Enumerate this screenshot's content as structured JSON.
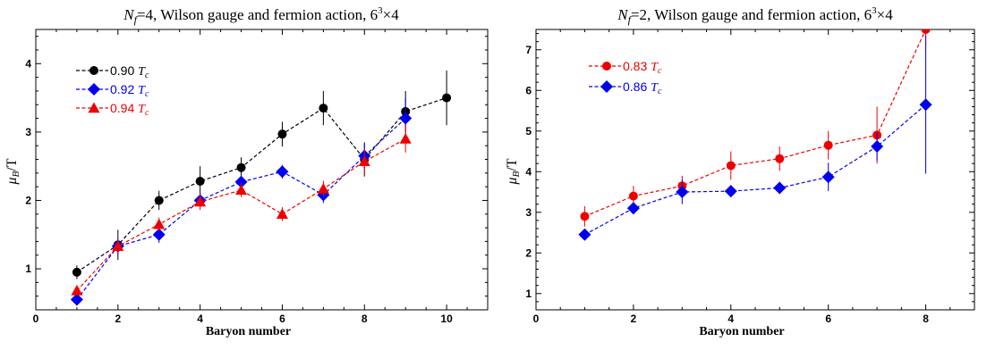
{
  "chart_data": [
    {
      "type": "line",
      "title": "N_f=4, Wilson gauge and fermion action, 6^3×4",
      "title_parts": {
        "nf": "N",
        "nf_sub": "f",
        "nf_value": "=4, Wilson gauge and fermion action, 6",
        "sup": "3",
        "tail": "×4"
      },
      "xlabel": "Baryon number",
      "ylabel": {
        "mu": "μ",
        "sub": "B",
        "rest": "/T"
      },
      "xlim": [
        0,
        11
      ],
      "ylim": [
        0.4,
        4.5
      ],
      "xticks": [
        0,
        2,
        4,
        6,
        8,
        10
      ],
      "yticks": [
        1,
        2,
        3,
        4
      ],
      "legend_position": "top-left",
      "grid": false,
      "series": [
        {
          "name": "0.90 T_c",
          "label_value": "0.90 ",
          "label_T": "T",
          "label_sub": "c",
          "color": "#000000",
          "marker": "circle",
          "x": [
            1,
            2,
            3,
            4,
            5,
            6,
            7,
            8,
            9,
            10
          ],
          "y": [
            0.95,
            1.35,
            2.0,
            2.28,
            2.48,
            2.97,
            3.35,
            2.6,
            3.3,
            3.5
          ],
          "err": [
            0.1,
            0.22,
            0.14,
            0.22,
            0.15,
            0.18,
            0.25,
            0.25,
            0.3,
            0.4
          ]
        },
        {
          "name": "0.92 T_c",
          "label_value": "0.92 ",
          "label_T": "T",
          "label_sub": "c",
          "color": "#0000ee",
          "marker": "diamond",
          "x": [
            1,
            2,
            3,
            4,
            5,
            6,
            7,
            8,
            9
          ],
          "y": [
            0.55,
            1.33,
            1.5,
            2.0,
            2.27,
            2.42,
            2.08,
            2.65,
            3.2
          ],
          "err": [
            0.05,
            0.12,
            0.12,
            0.1,
            0.1,
            0.1,
            0.12,
            0.18,
            0.3
          ]
        },
        {
          "name": "0.94 T_c",
          "label_value": "0.94 ",
          "label_T": "T",
          "label_sub": "c",
          "color": "#ee0000",
          "marker": "triangle",
          "x": [
            1,
            2,
            3,
            4,
            5,
            6,
            7,
            8,
            9
          ],
          "y": [
            0.68,
            1.33,
            1.65,
            1.98,
            2.15,
            1.8,
            2.17,
            2.57,
            2.9
          ],
          "err": [
            0.06,
            0.1,
            0.1,
            0.12,
            0.1,
            0.1,
            0.12,
            0.2,
            0.2
          ]
        }
      ]
    },
    {
      "type": "line",
      "title": "N_f=2, Wilson gauge and fermion action, 6^3×4",
      "title_parts": {
        "nf": "N",
        "nf_sub": "f",
        "nf_value": "=2, Wilson gauge and fermion action, 6",
        "sup": "3",
        "tail": "×4"
      },
      "xlabel": "Baryon number",
      "ylabel": {
        "mu": "μ",
        "sub": "B",
        "rest": "/T"
      },
      "xlim": [
        0,
        9
      ],
      "ylim": [
        0.6,
        7.5
      ],
      "xticks": [
        0,
        2,
        4,
        6,
        8
      ],
      "yticks": [
        1,
        2,
        3,
        4,
        5,
        6,
        7
      ],
      "legend_position": "top-left",
      "grid": false,
      "series": [
        {
          "name": "0.83 T_c",
          "label_value": "0.83 ",
          "label_T": "T",
          "label_sub": "c",
          "color": "#ee0000",
          "marker": "circle",
          "x": [
            1,
            2,
            3,
            4,
            5,
            6,
            7,
            8
          ],
          "y": [
            2.9,
            3.4,
            3.65,
            4.15,
            4.32,
            4.65,
            4.9,
            7.5
          ],
          "err": [
            0.25,
            0.25,
            0.25,
            0.35,
            0.3,
            0.35,
            0.7,
            0.5
          ]
        },
        {
          "name": "0.86 T_c",
          "label_value": "0.86 ",
          "label_T": "T",
          "label_sub": "c",
          "color": "#0000ee",
          "marker": "diamond",
          "x": [
            1,
            2,
            3,
            4,
            5,
            6,
            7,
            8
          ],
          "y": [
            2.45,
            3.1,
            3.5,
            3.52,
            3.6,
            3.87,
            4.62,
            5.65
          ],
          "err": [
            0.12,
            0.15,
            0.3,
            0.15,
            0.15,
            0.35,
            0.35,
            1.7
          ]
        }
      ]
    }
  ]
}
